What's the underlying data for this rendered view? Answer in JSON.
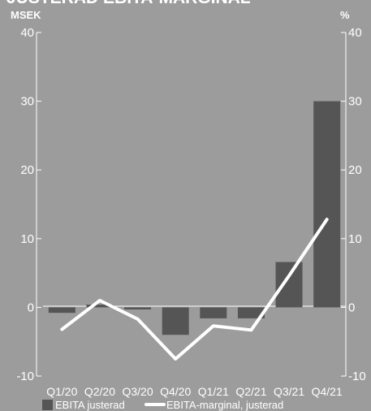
{
  "chart_data": {
    "type": "bar+line",
    "title": "JUSTERAD EBITA-MARGINAL",
    "categories": [
      "Q1/20",
      "Q2/20",
      "Q3/20",
      "Q4/20",
      "Q1/21",
      "Q2/21",
      "Q3/21",
      "Q4/21"
    ],
    "y_left": {
      "unit": "MSEK",
      "range": [
        -10,
        40
      ],
      "ticks": [
        -10,
        0,
        10,
        20,
        30,
        40
      ]
    },
    "y_right": {
      "unit": "%",
      "range": [
        -10,
        40
      ],
      "ticks": [
        -10,
        0,
        10,
        20,
        30,
        40
      ]
    },
    "series": [
      {
        "name": "EBITA justerad",
        "type": "bar",
        "axis": "left",
        "color": "#555555",
        "values": [
          -0.8,
          0.4,
          -0.3,
          -4.0,
          -1.6,
          -1.6,
          6.6,
          30.0
        ]
      },
      {
        "name": "EBITA-marginal, justerad",
        "type": "line",
        "axis": "right",
        "color": "#ffffff",
        "values": [
          -3.2,
          1.0,
          -1.7,
          -7.5,
          -2.7,
          -3.3,
          4.6,
          12.8
        ]
      }
    ],
    "grid": false,
    "legend_position": "bottom-left"
  }
}
